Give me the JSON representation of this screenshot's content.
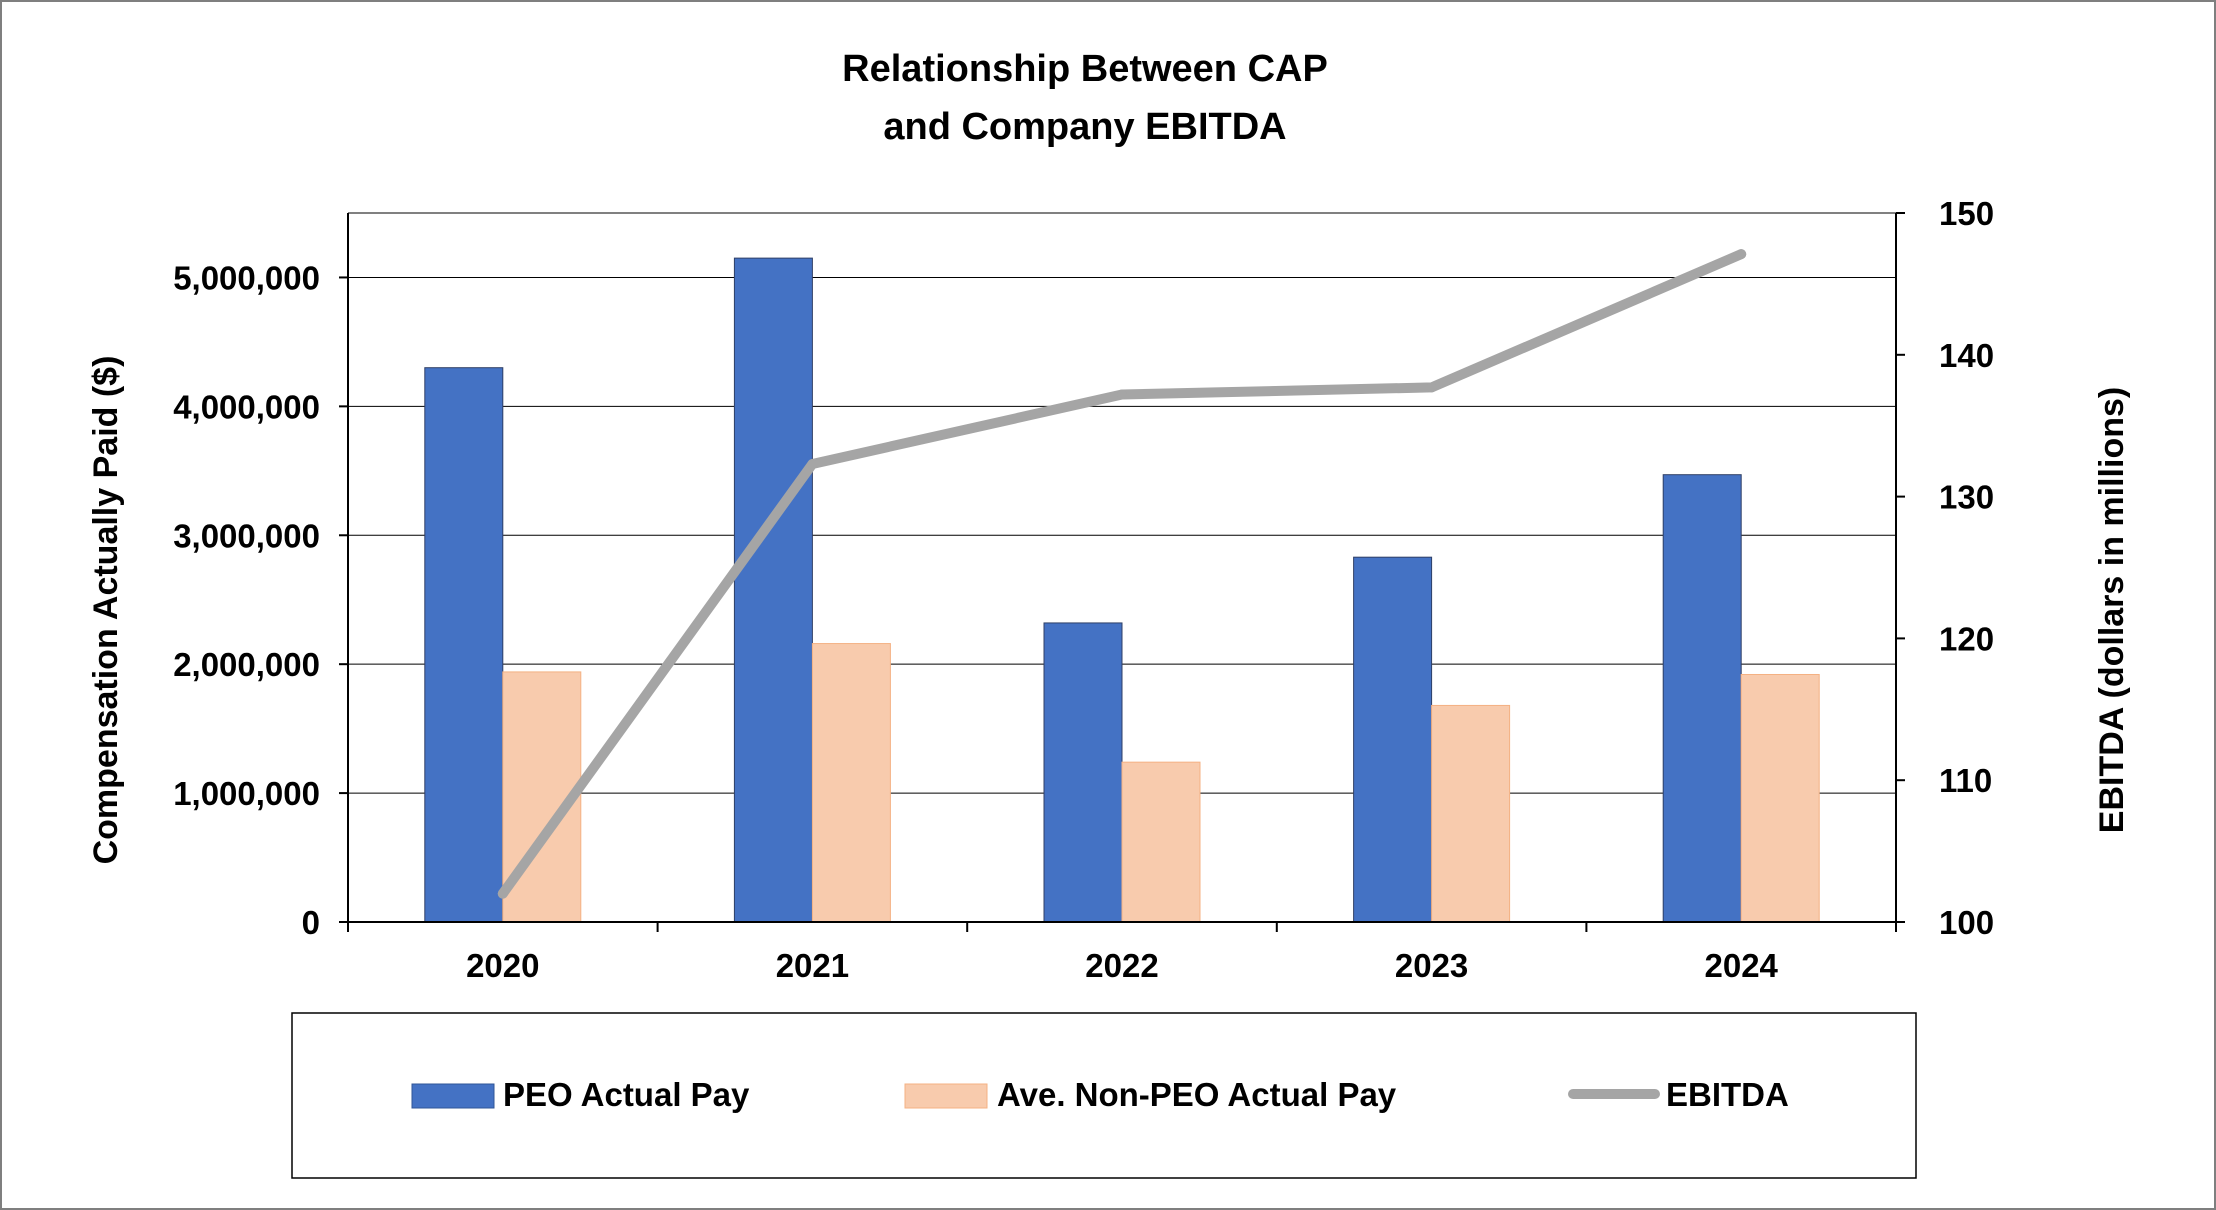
{
  "chart_data": {
    "type": "bar+line",
    "title_lines": [
      "Relationship Between CAP",
      "and Company EBITDA"
    ],
    "categories": [
      "2020",
      "2021",
      "2022",
      "2023",
      "2024"
    ],
    "series": [
      {
        "name": "PEO Actual Pay",
        "kind": "bar",
        "axis": "left",
        "color": "#4472c4",
        "values": [
          4300000,
          5150000,
          2320000,
          2830000,
          3470000
        ]
      },
      {
        "name": "Ave. Non-PEO Actual Pay",
        "kind": "bar",
        "axis": "left",
        "color": "#f8cbad",
        "values": [
          1940000,
          2160000,
          1240000,
          1680000,
          1920000
        ]
      },
      {
        "name": "EBITDA",
        "kind": "line",
        "axis": "right",
        "color": "#a5a5a5",
        "values": [
          102,
          132.3,
          137.2,
          137.7,
          147.1
        ]
      }
    ],
    "ylabel_left": "Compensation Actually Paid ($)",
    "ylabel_right": "EBITDA (dollars in millions)",
    "ylim_left": [
      0,
      5500000
    ],
    "yticks_left": [
      0,
      1000000,
      2000000,
      3000000,
      4000000,
      5000000
    ],
    "ytick_labels_left": [
      "0",
      "1,000,000",
      "2,000,000",
      "3,000,000",
      "4,000,000",
      "5,000,000"
    ],
    "ylim_right": [
      100,
      150
    ],
    "yticks_right": [
      100,
      110,
      120,
      130,
      140,
      150
    ],
    "ytick_labels_right": [
      "100",
      "110",
      "120",
      "130",
      "140",
      "150"
    ],
    "grid": true,
    "legend_position": "bottom"
  }
}
